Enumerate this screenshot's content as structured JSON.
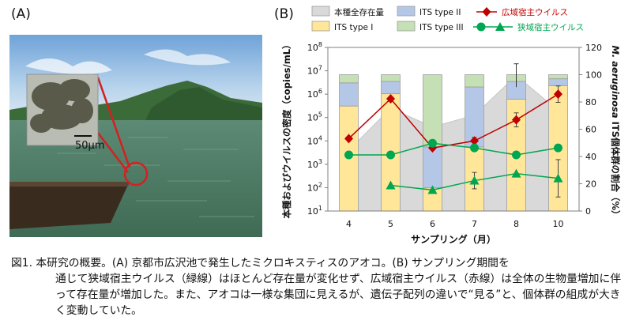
{
  "panels": {
    "a_label": "(A)",
    "b_label": "(B)"
  },
  "photo": {
    "scale_label": "50μm",
    "colors": {
      "sky": "#a9cbe9",
      "water": "#4f7f67",
      "mountain": "#3c6b3a",
      "circle": "#d42020"
    }
  },
  "caption": {
    "line1": "図1. 本研究の概要。(A) 京都市広沢池で発生したミクロキスティスのアオコ。(B) サンプリング期間を",
    "rest": "通じて狭域宿主ウイルス（緑線）はほとんど存在量が変化せず、広域宿主ウイルス（赤線）は全体の生物量増加に伴って存在量が増加した。また、アオコは一様な集団に見えるが、遺伝子配列の違いで“見る”と、個体群の組成が大きく変動していた。"
  },
  "chart_data": {
    "type": "bar",
    "categories": [
      "4",
      "5",
      "6",
      "7",
      "8",
      "10"
    ],
    "xlabel": "サンプリング（月）",
    "ylabel_left": "本種およびウイルスの密度（copies/mL）",
    "ylabel_right_italic": "M. aeruginosa",
    "ylabel_right_rest": " ITS個体群の割合（%）",
    "left_axis": {
      "scale": "log",
      "ylim_exp": [
        1,
        8
      ],
      "tick_base": "10"
    },
    "right_axis": {
      "ylim": [
        0,
        120
      ],
      "ticks": [
        0,
        20,
        40,
        60,
        80,
        100,
        120
      ]
    },
    "legend": [
      {
        "key": "total",
        "label": "本種全存在量",
        "kind": "area"
      },
      {
        "key": "its2",
        "label": "ITS type II",
        "kind": "box"
      },
      {
        "key": "wide",
        "label": "広域宿主ウイルス",
        "kind": "diamond-line"
      },
      {
        "key": "its1",
        "label": "ITS type I",
        "kind": "box"
      },
      {
        "key": "its3",
        "label": "ITS type III",
        "kind": "box"
      },
      {
        "key": "narrow",
        "label": "狭域宿主ウイルス",
        "kind": "circle-triangle-line"
      }
    ],
    "colors": {
      "total": "#d9d9d9",
      "its1": "#ffe699",
      "its2": "#b4c7e7",
      "its3": "#c5e0b4",
      "wide": "#c00000",
      "narrow": "#00a651",
      "frame": "#7f7f7f",
      "text": "#111111"
    },
    "total_log10": [
      3.6,
      5.4,
      4.6,
      5.1,
      6.8,
      5.3
    ],
    "total_error_log10": [
      0,
      0,
      0,
      0,
      0.5,
      0
    ],
    "its_percent": {
      "type_I": [
        77,
        86,
        17,
        47,
        82,
        92
      ],
      "type_II": [
        17,
        9,
        30,
        44,
        13,
        5
      ],
      "type_III": [
        6,
        5,
        53,
        9,
        5,
        3
      ]
    },
    "series": [
      {
        "name": "広域宿主ウイルス",
        "marker": "diamond",
        "log10": [
          4.1,
          5.8,
          3.7,
          4.0,
          4.9,
          6.0
        ],
        "err": [
          0,
          0,
          0,
          0.15,
          0.3,
          0.35
        ]
      },
      {
        "name": "狭域宿主ウイルス",
        "marker": "circle",
        "log10": [
          3.4,
          3.4,
          3.9,
          3.7,
          3.4,
          3.7
        ],
        "err": [
          0,
          0,
          0,
          0,
          0,
          0
        ]
      },
      {
        "name": "狭域宿主ウイルス",
        "marker": "triangle",
        "log10": [
          null,
          2.1,
          1.9,
          2.3,
          2.6,
          2.4
        ],
        "err": [
          0,
          0,
          0,
          0.35,
          0,
          0.8
        ]
      }
    ]
  }
}
